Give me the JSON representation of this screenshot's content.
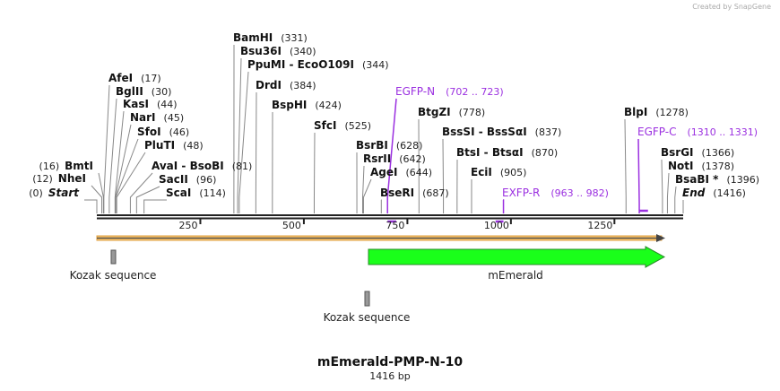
{
  "credit": "Created by SnapGene",
  "map": {
    "title": "mEmerald-PMP-N-10",
    "length_label": "1416 bp",
    "length_bp": 1416
  },
  "ticks": [
    "250",
    "500",
    "750",
    "1000",
    "1250"
  ],
  "tick_values": [
    250,
    500,
    750,
    1000,
    1250
  ],
  "sites": [
    {
      "name": "Start",
      "pos_label": "(0)",
      "pos": 0,
      "type": "end"
    },
    {
      "name": "NheI",
      "pos_label": "(12)",
      "pos": 12,
      "type": "enzyme"
    },
    {
      "name": "BmtI",
      "pos_label": "(16)",
      "pos": 16,
      "type": "enzyme"
    },
    {
      "name": "AfeI",
      "pos_label": "(17)",
      "pos": 17,
      "type": "enzyme"
    },
    {
      "name": "BglII",
      "pos_label": "(30)",
      "pos": 30,
      "type": "enzyme"
    },
    {
      "name": "KasI",
      "pos_label": "(44)",
      "pos": 44,
      "type": "enzyme"
    },
    {
      "name": "NarI",
      "pos_label": "(45)",
      "pos": 45,
      "type": "enzyme"
    },
    {
      "name": "SfoI",
      "pos_label": "(46)",
      "pos": 46,
      "type": "enzyme"
    },
    {
      "name": "PluTI",
      "pos_label": "(48)",
      "pos": 48,
      "type": "enzyme"
    },
    {
      "name": "AvaI  - BsoBI",
      "pos_label": "(81)",
      "pos": 81,
      "type": "enzyme"
    },
    {
      "name": "SacII",
      "pos_label": "(96)",
      "pos": 96,
      "type": "enzyme"
    },
    {
      "name": "ScaI",
      "pos_label": "(114)",
      "pos": 114,
      "type": "enzyme"
    },
    {
      "name": "BamHI",
      "pos_label": "(331)",
      "pos": 331,
      "type": "enzyme"
    },
    {
      "name": "Bsu36I",
      "pos_label": "(340)",
      "pos": 340,
      "type": "enzyme"
    },
    {
      "name": "PpuMI  - EcoO109I",
      "pos_label": "(344)",
      "pos": 344,
      "type": "enzyme"
    },
    {
      "name": "DrdI",
      "pos_label": "(384)",
      "pos": 384,
      "type": "enzyme"
    },
    {
      "name": "BspHI",
      "pos_label": "(424)",
      "pos": 424,
      "type": "enzyme"
    },
    {
      "name": "SfcI",
      "pos_label": "(525)",
      "pos": 525,
      "type": "enzyme"
    },
    {
      "name": "BsrBI",
      "pos_label": "(628)",
      "pos": 628,
      "type": "enzyme"
    },
    {
      "name": "RsrII",
      "pos_label": "(642)",
      "pos": 642,
      "type": "enzyme"
    },
    {
      "name": "AgeI",
      "pos_label": "(644)",
      "pos": 644,
      "type": "enzyme"
    },
    {
      "name": "BseRI",
      "pos_label": "(687)",
      "pos": 687,
      "type": "enzyme"
    },
    {
      "name": "EGFP-N",
      "pos_label": "(702 .. 723)",
      "pos": 702,
      "end": 723,
      "type": "primer",
      "strand": "forward"
    },
    {
      "name": "BtgZI",
      "pos_label": "(778)",
      "pos": 778,
      "type": "enzyme"
    },
    {
      "name": "BssSI  - BssSαI",
      "pos_label": "(837)",
      "pos": 837,
      "type": "enzyme"
    },
    {
      "name": "BtsI  - BtsαI",
      "pos_label": "(870)",
      "pos": 870,
      "type": "enzyme"
    },
    {
      "name": "EciI",
      "pos_label": "(905)",
      "pos": 905,
      "type": "enzyme"
    },
    {
      "name": "EXFP-R",
      "pos_label": "(963 .. 982)",
      "pos": 982,
      "end": 963,
      "type": "primer",
      "strand": "reverse"
    },
    {
      "name": "BlpI",
      "pos_label": "(1278)",
      "pos": 1278,
      "type": "enzyme"
    },
    {
      "name": "EGFP-C",
      "pos_label": "(1310 .. 1331)",
      "pos": 1310,
      "end": 1331,
      "type": "primer",
      "strand": "forward"
    },
    {
      "name": "BsrGI",
      "pos_label": "(1366)",
      "pos": 1366,
      "type": "enzyme"
    },
    {
      "name": "NotI",
      "pos_label": "(1378)",
      "pos": 1378,
      "type": "enzyme"
    },
    {
      "name": "BsaBI *",
      "pos_label": "(1396)",
      "pos": 1396,
      "type": "enzyme"
    },
    {
      "name": "End",
      "pos_label": "(1416)",
      "pos": 1416,
      "type": "end"
    }
  ],
  "features": [
    {
      "name": "Kozak sequence",
      "start": 35,
      "end": 45,
      "type": "misc"
    },
    {
      "name": "mEmerald",
      "start": 655,
      "end": 1370,
      "type": "cds",
      "direction": "forward"
    },
    {
      "name": "Kozak sequence",
      "start": 645,
      "end": 655,
      "type": "misc"
    }
  ],
  "colors": {
    "primer": "#9b30e0",
    "cds": "#1aff1a",
    "orf": "#f5c16c",
    "misc": "#999999"
  }
}
